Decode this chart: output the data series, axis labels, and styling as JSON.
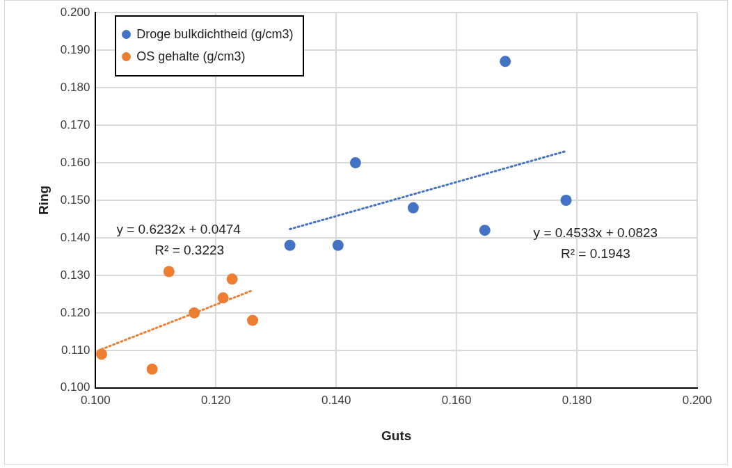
{
  "chart_data": {
    "type": "scatter",
    "xlabel": "Guts",
    "ylabel": "Ring",
    "xlim": [
      0.1,
      0.2
    ],
    "xticks": [
      {
        "value": 0.1,
        "label": "0.100"
      },
      {
        "value": 0.12,
        "label": "0.120"
      },
      {
        "value": 0.14,
        "label": "0.140"
      },
      {
        "value": 0.16,
        "label": "0.160"
      },
      {
        "value": 0.18,
        "label": "0.180"
      },
      {
        "value": 0.2,
        "label": "0.200"
      }
    ],
    "ylim": [
      0.1,
      0.2
    ],
    "yticks": [
      {
        "value": 0.1,
        "label": "0.100"
      },
      {
        "value": 0.11,
        "label": "0.110"
      },
      {
        "value": 0.12,
        "label": "0.120"
      },
      {
        "value": 0.13,
        "label": "0.130"
      },
      {
        "value": 0.14,
        "label": "0.140"
      },
      {
        "value": 0.15,
        "label": "0.150"
      },
      {
        "value": 0.16,
        "label": "0.160"
      },
      {
        "value": 0.17,
        "label": "0.170"
      },
      {
        "value": 0.18,
        "label": "0.180"
      },
      {
        "value": 0.19,
        "label": "0.190"
      },
      {
        "value": 0.2,
        "label": "0.200"
      }
    ],
    "grid": true,
    "legend": "top left",
    "marker": "circle",
    "series": [
      {
        "name": "Droge bulkdichtheid (g/cm3)",
        "color": "#4472c4",
        "x": [
          0.1323,
          0.1403,
          0.1432,
          0.1528,
          0.1647,
          0.1681,
          0.1782
        ],
        "values": [
          0.138,
          0.138,
          0.16,
          0.148,
          0.142,
          0.187,
          0.15
        ]
      },
      {
        "name": "OS gehalte (g/cm3)",
        "color": "#ed7d31",
        "x": [
          0.101,
          0.1094,
          0.1122,
          0.1164,
          0.1212,
          0.1227,
          0.1261
        ],
        "values": [
          0.109,
          0.105,
          0.131,
          0.12,
          0.124,
          0.129,
          0.118
        ]
      },
      {
        "type": "line",
        "color": "#4472c4",
        "line_style": "dotted",
        "marker": "none",
        "x": [
          0.1323,
          0.1782
        ],
        "values": [
          0.1423,
          0.1631
        ]
      },
      {
        "type": "line",
        "color": "#ed7d31",
        "line_style": "dotted",
        "marker": "none",
        "x": [
          0.101,
          0.1261
        ],
        "values": [
          0.1103,
          0.126
        ]
      }
    ],
    "annotations": [
      "y = 0.6232x + 0.0474",
      "R² = 0.3223",
      "y = 0.4533x + 0.0823",
      "R² = 0.1943"
    ]
  }
}
